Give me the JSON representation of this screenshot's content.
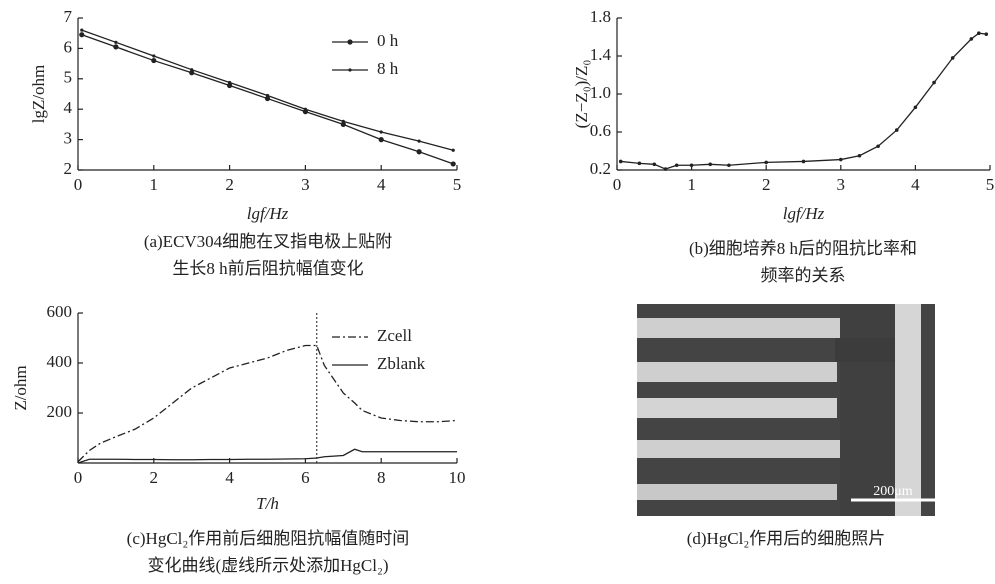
{
  "chart_data": [
    {
      "type": "line",
      "xlabel": "lgf/Hz",
      "ylabel": "lgZ/ohm",
      "caption": [
        "(a)ECV304细胞在叉指电极上贴附",
        "生长8 h前后阻抗幅值变化"
      ],
      "xlim": [
        0,
        5
      ],
      "ylim": [
        2,
        7
      ],
      "xticks": [
        0,
        1,
        2,
        3,
        4,
        5
      ],
      "yticks": [
        2,
        3,
        4,
        5,
        6,
        7
      ],
      "x": [
        0.05,
        0.5,
        1,
        1.5,
        2,
        2.5,
        3,
        3.5,
        4,
        4.5,
        4.95
      ],
      "series": [
        {
          "name": "0 h",
          "color": "#222222",
          "style": "solid",
          "marker": 2.6,
          "values": [
            6.45,
            6.05,
            5.6,
            5.2,
            4.78,
            4.35,
            3.92,
            3.5,
            3.0,
            2.6,
            2.2
          ]
        },
        {
          "name": "8 h",
          "color": "#222222",
          "style": "solid",
          "marker": 1.6,
          "values": [
            6.6,
            6.2,
            5.75,
            5.3,
            4.88,
            4.45,
            4.0,
            3.6,
            3.25,
            2.95,
            2.65
          ]
        }
      ],
      "legend": "top-right"
    },
    {
      "type": "line",
      "xlabel": "lgf/Hz",
      "ylabel": "(Z−Z₀)/Z₀",
      "caption": [
        "(b)细胞培养8 h后的阻抗比率和",
        "频率的关系"
      ],
      "xlim": [
        0,
        5
      ],
      "ylim": [
        0.2,
        1.8
      ],
      "xticks": [
        0,
        1,
        2,
        3,
        4,
        5
      ],
      "yticks": [
        0.2,
        0.6,
        {
          "value": 1,
          "label": "1.0"
        },
        1.4,
        1.8
      ],
      "x": [
        0.05,
        0.3,
        0.5,
        0.65,
        0.8,
        1,
        1.25,
        1.5,
        2,
        2.5,
        3,
        3.25,
        3.5,
        3.75,
        4,
        4.25,
        4.5,
        4.75,
        4.85,
        4.95
      ],
      "series": [
        {
          "color": "#222222",
          "style": "solid",
          "marker": 1.8,
          "values": [
            0.29,
            0.27,
            0.26,
            0.21,
            0.25,
            0.25,
            0.26,
            0.25,
            0.28,
            0.29,
            0.31,
            0.35,
            0.45,
            0.62,
            0.86,
            1.12,
            1.38,
            1.58,
            1.64,
            1.63
          ]
        }
      ]
    },
    {
      "type": "line",
      "xlabel": "T/h",
      "ylabel": "Z/ohm",
      "caption": [
        "(c)HgCl₂作用前后细胞阻抗幅值随时间",
        "变化曲线(虚线所示处添加HgCl₂)"
      ],
      "xlim": [
        0,
        10
      ],
      "ylim": [
        0,
        600
      ],
      "xticks": [
        0,
        2,
        4,
        6,
        8,
        10
      ],
      "yticks": [
        200,
        400,
        600
      ],
      "x": [
        0,
        0.3,
        0.6,
        1,
        1.5,
        2,
        2.5,
        3,
        3.5,
        4,
        4.5,
        5,
        5.5,
        6,
        6.3,
        6.5,
        7,
        7.3,
        7.5,
        8,
        8.5,
        9,
        9.5,
        10
      ],
      "vline": 6.3,
      "series": [
        {
          "name": "Zcell",
          "color": "#222222",
          "style": "dashdot",
          "values": [
            5,
            50,
            80,
            105,
            135,
            180,
            240,
            300,
            340,
            380,
            400,
            420,
            450,
            470,
            470,
            390,
            280,
            240,
            210,
            180,
            170,
            165,
            165,
            170
          ]
        },
        {
          "name": "Zblank",
          "color": "#222222",
          "style": "solid",
          "values": [
            0,
            15,
            15,
            15,
            14,
            14,
            13,
            13,
            14,
            14,
            15,
            15,
            16,
            17,
            20,
            25,
            30,
            55,
            45,
            45,
            45,
            45,
            45,
            45
          ]
        }
      ],
      "legend": "top-right"
    },
    {
      "type": "image",
      "caption": [
        "(d)HgCl₂作用后的细胞照片"
      ],
      "scalebar": "200μm"
    }
  ]
}
